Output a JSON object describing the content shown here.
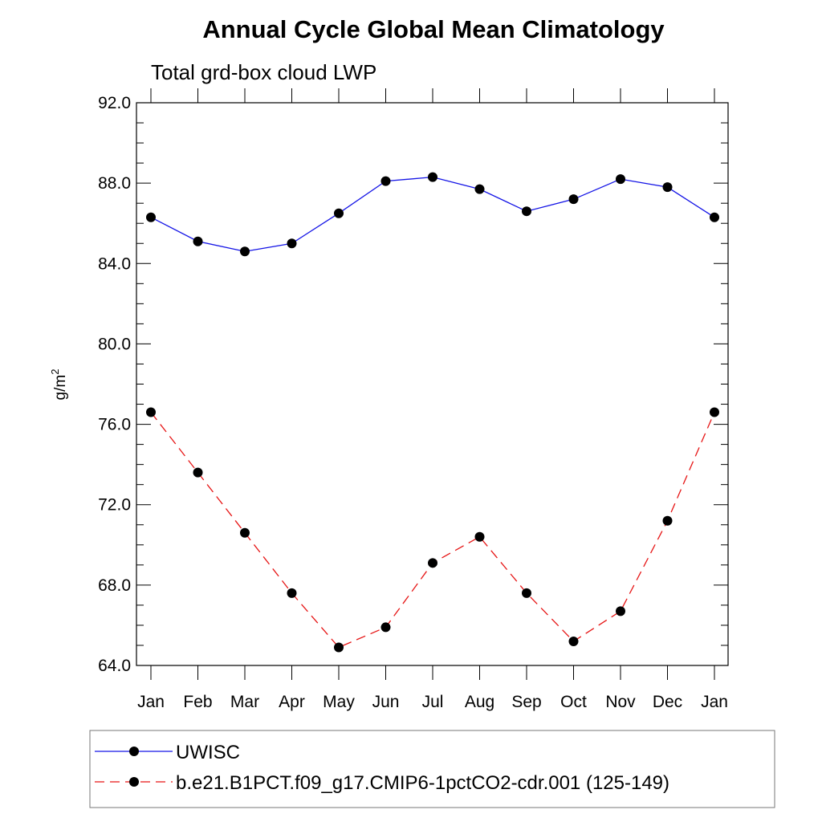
{
  "chart_data": {
    "type": "line",
    "title": "Annual Cycle Global Mean Climatology",
    "subtitle": "Total grd-box cloud LWP",
    "ylabel_base": "g/m",
    "ylabel_sup": "2",
    "xlabel": "",
    "categories": [
      "Jan",
      "Feb",
      "Mar",
      "Apr",
      "May",
      "Jun",
      "Jul",
      "Aug",
      "Sep",
      "Oct",
      "Nov",
      "Dec",
      "Jan"
    ],
    "ylim": [
      64.0,
      92.0
    ],
    "yticks": [
      "64.0",
      "68.0",
      "72.0",
      "76.0",
      "80.0",
      "84.0",
      "88.0",
      "92.0"
    ],
    "grid": false,
    "legend_position": "bottom",
    "series": [
      {
        "name": "UWISC",
        "color": "#1414e6",
        "dash": "solid",
        "marker": "filled-circle",
        "values": [
          86.3,
          85.1,
          84.6,
          85.0,
          86.5,
          88.1,
          88.3,
          87.7,
          86.6,
          87.2,
          88.2,
          87.8,
          86.3
        ]
      },
      {
        "name": "b.e21.B1PCT.f09_g17.CMIP6-1pctCO2-cdr.001 (125-149)",
        "color": "#e61414",
        "dash": "dashed",
        "marker": "filled-circle",
        "values": [
          76.6,
          73.6,
          70.6,
          67.6,
          64.9,
          65.9,
          69.1,
          70.4,
          67.6,
          65.2,
          66.7,
          71.2,
          76.6
        ]
      }
    ]
  }
}
